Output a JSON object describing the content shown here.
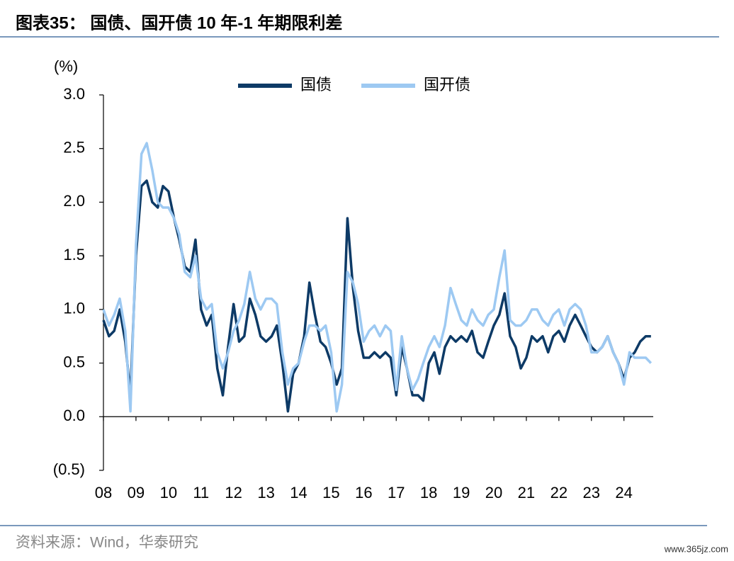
{
  "chart_data": {
    "type": "line",
    "title": "图表35： 国债、国开债 10 年-1 年期限利差",
    "y_label": "(%)",
    "source": "资料来源：Wind，华泰研究",
    "watermark": "www.365jz.com",
    "legend": "top",
    "x": [
      2008,
      2008.17,
      2008.33,
      2008.5,
      2008.67,
      2008.83,
      2009,
      2009.17,
      2009.33,
      2009.5,
      2009.67,
      2009.83,
      2010,
      2010.17,
      2010.33,
      2010.5,
      2010.67,
      2010.83,
      2011,
      2011.17,
      2011.33,
      2011.5,
      2011.67,
      2011.83,
      2012,
      2012.17,
      2012.33,
      2012.5,
      2012.67,
      2012.83,
      2013,
      2013.17,
      2013.33,
      2013.5,
      2013.67,
      2013.83,
      2014,
      2014.17,
      2014.33,
      2014.5,
      2014.67,
      2014.83,
      2015,
      2015.17,
      2015.33,
      2015.5,
      2015.67,
      2015.83,
      2016,
      2016.17,
      2016.33,
      2016.5,
      2016.67,
      2016.83,
      2017,
      2017.17,
      2017.33,
      2017.5,
      2017.67,
      2017.83,
      2018,
      2018.17,
      2018.33,
      2018.5,
      2018.67,
      2018.83,
      2019,
      2019.17,
      2019.33,
      2019.5,
      2019.67,
      2019.83,
      2020,
      2020.17,
      2020.33,
      2020.5,
      2020.67,
      2020.83,
      2021,
      2021.17,
      2021.33,
      2021.5,
      2021.67,
      2021.83,
      2022,
      2022.17,
      2022.33,
      2022.5,
      2022.67,
      2022.83,
      2023,
      2023.17,
      2023.33,
      2023.5,
      2023.67,
      2023.83,
      2024,
      2024.17,
      2024.33,
      2024.5,
      2024.67,
      2024.83
    ],
    "series": [
      {
        "name": "国债",
        "color": "#0d3a66",
        "values": [
          0.9,
          0.75,
          0.8,
          1.0,
          0.7,
          0.2,
          1.5,
          2.15,
          2.2,
          2.0,
          1.95,
          2.15,
          2.1,
          1.85,
          1.65,
          1.4,
          1.35,
          1.65,
          1.0,
          0.85,
          0.95,
          0.45,
          0.2,
          0.65,
          1.05,
          0.7,
          0.75,
          1.1,
          0.95,
          0.75,
          0.7,
          0.75,
          0.85,
          0.5,
          0.05,
          0.4,
          0.5,
          0.75,
          1.25,
          0.95,
          0.7,
          0.65,
          0.5,
          0.3,
          0.45,
          1.85,
          1.2,
          0.8,
          0.55,
          0.55,
          0.6,
          0.55,
          0.6,
          0.55,
          0.2,
          0.65,
          0.45,
          0.2,
          0.2,
          0.15,
          0.5,
          0.6,
          0.4,
          0.65,
          0.75,
          0.7,
          0.75,
          0.7,
          0.8,
          0.6,
          0.55,
          0.7,
          0.85,
          0.95,
          1.15,
          0.75,
          0.65,
          0.45,
          0.55,
          0.75,
          0.7,
          0.75,
          0.6,
          0.75,
          0.8,
          0.7,
          0.85,
          0.95,
          0.85,
          0.75,
          0.65,
          0.6,
          0.65,
          0.75,
          0.6,
          0.5,
          0.35,
          0.55,
          0.6,
          0.7,
          0.75,
          0.75
        ]
      },
      {
        "name": "国开债",
        "color": "#9dc9f2",
        "values": [
          1.0,
          0.85,
          0.95,
          1.1,
          0.8,
          0.05,
          1.6,
          2.45,
          2.55,
          2.3,
          2.0,
          1.95,
          1.95,
          1.85,
          1.7,
          1.35,
          1.3,
          1.5,
          1.1,
          1.0,
          1.05,
          0.6,
          0.45,
          0.6,
          0.8,
          0.9,
          1.05,
          1.35,
          1.1,
          1.0,
          1.1,
          1.1,
          1.05,
          0.6,
          0.3,
          0.45,
          0.5,
          0.7,
          0.85,
          0.85,
          0.8,
          0.85,
          0.6,
          0.05,
          0.3,
          1.35,
          1.25,
          1.05,
          0.7,
          0.8,
          0.85,
          0.75,
          0.85,
          0.8,
          0.25,
          0.75,
          0.45,
          0.25,
          0.35,
          0.5,
          0.65,
          0.75,
          0.65,
          0.85,
          1.2,
          1.05,
          0.9,
          0.85,
          1.0,
          0.9,
          0.85,
          0.95,
          1.0,
          1.3,
          1.55,
          0.9,
          0.85,
          0.85,
          0.9,
          1.0,
          1.0,
          0.9,
          0.85,
          0.95,
          1.0,
          0.85,
          1.0,
          1.05,
          1.0,
          0.85,
          0.6,
          0.6,
          0.65,
          0.75,
          0.6,
          0.5,
          0.3,
          0.6,
          0.55,
          0.55,
          0.55,
          0.5
        ]
      }
    ],
    "xlim": [
      2008,
      2024.9
    ],
    "xticks": [
      {
        "value": 2008,
        "label": "08"
      },
      {
        "value": 2009,
        "label": "09"
      },
      {
        "value": 2010,
        "label": "10"
      },
      {
        "value": 2011,
        "label": "11"
      },
      {
        "value": 2012,
        "label": "12"
      },
      {
        "value": 2013,
        "label": "13"
      },
      {
        "value": 2014,
        "label": "14"
      },
      {
        "value": 2015,
        "label": "15"
      },
      {
        "value": 2016,
        "label": "16"
      },
      {
        "value": 2017,
        "label": "17"
      },
      {
        "value": 2018,
        "label": "18"
      },
      {
        "value": 2019,
        "label": "19"
      },
      {
        "value": 2020,
        "label": "20"
      },
      {
        "value": 2021,
        "label": "21"
      },
      {
        "value": 2022,
        "label": "22"
      },
      {
        "value": 2023,
        "label": "23"
      },
      {
        "value": 2024,
        "label": "24"
      }
    ],
    "ylim": [
      -0.5,
      3.0
    ],
    "yticks": [
      {
        "value": -0.5,
        "label": "(0.5)"
      },
      {
        "value": 0,
        "label": "0.0"
      },
      0.5,
      {
        "value": 1,
        "label": "1.0"
      },
      1.5,
      {
        "value": 2,
        "label": "2.0"
      },
      2.5,
      {
        "value": 3,
        "label": "3.0"
      }
    ]
  }
}
